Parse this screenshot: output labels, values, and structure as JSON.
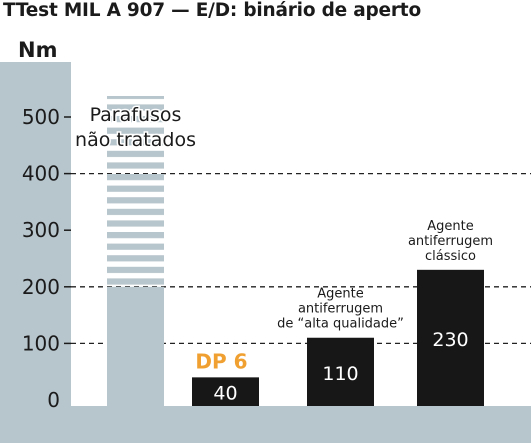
{
  "chart_data": {
    "type": "bar",
    "title": "TTest MIL A 907 — E/D: binário de aperto",
    "ylabel": "Nm",
    "ylim": [
      0,
      520
    ],
    "yticks": [
      0,
      100,
      200,
      300,
      400,
      500
    ],
    "grid": "dashed",
    "bars": [
      {
        "label": "Parafusos não tratados",
        "label_lines": [
          "Parafusos",
          "não tratados"
        ],
        "value": 200,
        "overflow": true,
        "value_label": "",
        "style": "gray-striped"
      },
      {
        "label": "DP 6",
        "label_lines": [
          "DP 6"
        ],
        "value": 40,
        "value_label": "40",
        "style": "dark-highlight"
      },
      {
        "label": "Agente antiferrugem de “alta qualidade”",
        "label_lines": [
          "Agente",
          "antiferrugem",
          "de “alta qualidade”"
        ],
        "value": 110,
        "value_label": "110",
        "style": "dark"
      },
      {
        "label": "Agente antiferrugem clássico",
        "label_lines": [
          "Agente",
          "antiferrugem",
          "clássico"
        ],
        "value": 230,
        "value_label": "230",
        "style": "dark"
      }
    ],
    "colors": {
      "panel": "#b7c5cc",
      "bar_gray": "#b7c5cc",
      "bar_dark": "#171717",
      "highlight": "#f0a030",
      "text": "#1b1b1b"
    }
  }
}
